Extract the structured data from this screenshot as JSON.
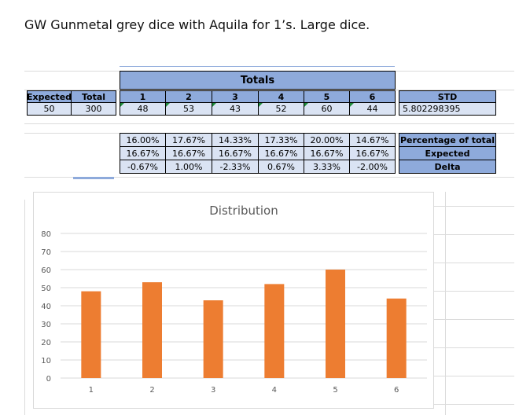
{
  "heading": "GW Gunmetal grey dice with Aquila for 1’s.  Large dice.",
  "sheet": {
    "totals_label": "Totals",
    "expected_header": "Expected",
    "total_header": "Total",
    "expected_value": "50",
    "total_value": "300",
    "face_headers": [
      "1",
      "2",
      "3",
      "4",
      "5",
      "6"
    ],
    "counts": [
      "48",
      "53",
      "43",
      "52",
      "60",
      "44"
    ],
    "std_header": "STD",
    "std_value": "5.802298395",
    "percent_row": [
      "16.00%",
      "17.67%",
      "14.33%",
      "17.33%",
      "20.00%",
      "14.67%"
    ],
    "expected_row": [
      "16.67%",
      "16.67%",
      "16.67%",
      "16.67%",
      "16.67%",
      "16.67%"
    ],
    "delta_row": [
      "-0.67%",
      "1.00%",
      "-2.33%",
      "0.67%",
      "3.33%",
      "-2.00%"
    ],
    "row_labels": [
      "Percentage of total",
      "Expected",
      "Delta"
    ]
  },
  "chart_data": {
    "type": "bar",
    "title": "Distribution",
    "categories": [
      "1",
      "2",
      "3",
      "4",
      "5",
      "6"
    ],
    "values": [
      48,
      53,
      43,
      52,
      60,
      44
    ],
    "ylim": [
      0,
      80
    ],
    "yticks": [
      0,
      10,
      20,
      30,
      40,
      50,
      60,
      70,
      80
    ],
    "bar_color": "#ed7d31",
    "grid": true,
    "legend": "none"
  },
  "colors": {
    "header_blue": "#8eaadb",
    "light_blue": "#dae3f3",
    "bar_orange": "#ed7d31"
  }
}
